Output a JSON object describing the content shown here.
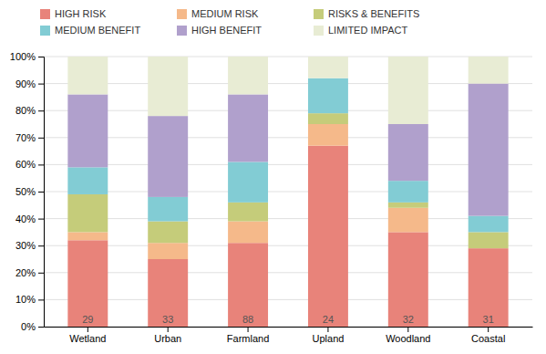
{
  "chart_data": {
    "type": "bar",
    "stacked": true,
    "categories": [
      "Wetland",
      "Urban",
      "Farmland",
      "Upland",
      "Woodland",
      "Coastal"
    ],
    "series": [
      {
        "name": "HIGH RISK",
        "color": "#e8837a",
        "values": [
          32,
          25,
          31,
          67,
          35,
          29
        ]
      },
      {
        "name": "MEDIUM RISK",
        "color": "#f5b98a",
        "values": [
          3,
          6,
          8,
          8,
          9,
          0
        ]
      },
      {
        "name": "RISKS & BENEFITS",
        "color": "#c5cc7a",
        "values": [
          14,
          8,
          7,
          4,
          2,
          6
        ]
      },
      {
        "name": "MEDIUM BENEFIT",
        "color": "#82ccd4",
        "values": [
          10,
          9,
          15,
          13,
          8,
          6
        ]
      },
      {
        "name": "HIGH BENEFIT",
        "color": "#b0a0cc",
        "values": [
          27,
          30,
          25,
          0,
          21,
          49
        ]
      },
      {
        "name": "LIMITED IMPACT",
        "color": "#e8ecd4",
        "values": [
          14,
          22,
          14,
          8,
          25,
          10
        ]
      }
    ],
    "n_values": [
      29,
      33,
      88,
      24,
      32,
      31
    ],
    "ylim": [
      0,
      100
    ],
    "yticks": [
      {
        "value": 0,
        "label": "0%"
      },
      {
        "value": 10,
        "label": "10%"
      },
      {
        "value": 20,
        "label": "20%"
      },
      {
        "value": 30,
        "label": "30%"
      },
      {
        "value": 40,
        "label": "40%"
      },
      {
        "value": 50,
        "label": "50%"
      },
      {
        "value": 60,
        "label": "60%"
      },
      {
        "value": 70,
        "label": "70%"
      },
      {
        "value": 80,
        "label": "80%"
      },
      {
        "value": 90,
        "label": "90%"
      },
      {
        "value": 100,
        "label": "100%"
      }
    ],
    "grid": true,
    "legend": "upper left"
  }
}
